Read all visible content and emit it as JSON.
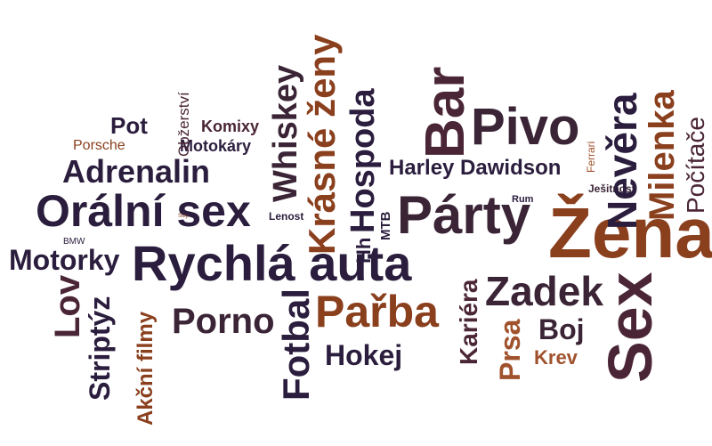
{
  "words": [
    {
      "id": "orální-sex",
      "text": "Orální sex",
      "color": "#2b1d3d"
    },
    {
      "id": "rychlá-auta",
      "text": "Rychlá auta",
      "color": "#2b1d3d"
    },
    {
      "id": "párty",
      "text": "Párty",
      "color": "#3a2436"
    },
    {
      "id": "žena",
      "text": "Žena",
      "color": "#8a3f1d"
    },
    {
      "id": "sex",
      "text": "Sex",
      "color": "#4a2535"
    },
    {
      "id": "pivo",
      "text": "Pivo",
      "color": "#3a2436"
    },
    {
      "id": "bar",
      "text": "Bar",
      "color": "#4a2535"
    },
    {
      "id": "parba",
      "text": "Pařba",
      "color": "#8a3f1d"
    },
    {
      "id": "zadek",
      "text": "Zadek",
      "color": "#3a2436"
    },
    {
      "id": "adrenalin",
      "text": "Adrenalin",
      "color": "#2b1d3d"
    },
    {
      "id": "motorky",
      "text": "Motorky",
      "color": "#2b1d3d"
    },
    {
      "id": "porno",
      "text": "Porno",
      "color": "#3a2436"
    },
    {
      "id": "fotbal",
      "text": "Fotbal",
      "color": "#2b1d3d"
    },
    {
      "id": "hokej",
      "text": "Hokej",
      "color": "#2b1d3d"
    },
    {
      "id": "hospoda",
      "text": "Hospoda",
      "color": "#2b1d3d"
    },
    {
      "id": "krasne-zeny",
      "text": "Krásné ženy",
      "color": "#8a3f1d"
    },
    {
      "id": "whiskey",
      "text": "Whiskey",
      "color": "#3a2436"
    },
    {
      "id": "nevera",
      "text": "Nevěra",
      "color": "#2b1d3d"
    },
    {
      "id": "milenka",
      "text": "Milenka",
      "color": "#8a3f1d"
    },
    {
      "id": "pocitace",
      "text": "Počítače",
      "color": "#4a2535"
    },
    {
      "id": "harley",
      "text": "Harley Dawidson",
      "color": "#2b1d3d"
    },
    {
      "id": "kariera",
      "text": "Kariéra",
      "color": "#4a2535"
    },
    {
      "id": "prsa",
      "text": "Prsa",
      "color": "#a0522d"
    },
    {
      "id": "boj",
      "text": "Boj",
      "color": "#3a2436"
    },
    {
      "id": "krev",
      "text": "Krev",
      "color": "#a0522d"
    },
    {
      "id": "lov",
      "text": "Lov",
      "color": "#4a2535"
    },
    {
      "id": "striptyz",
      "text": "Striptýz",
      "color": "#2b1d3d"
    },
    {
      "id": "akcni-filmy",
      "text": "Akční filmy",
      "color": "#8a3f1d"
    },
    {
      "id": "pot",
      "text": "Pot",
      "color": "#2b1d3d"
    },
    {
      "id": "komixy",
      "text": "Komixy",
      "color": "#4a2535"
    },
    {
      "id": "motokary",
      "text": "Motokáry",
      "color": "#2b1d3d"
    },
    {
      "id": "porsche",
      "text": "Porsche",
      "color": "#8a3f1d"
    },
    {
      "id": "obzerstvi",
      "text": "Obžerství",
      "color": "#4a2535"
    },
    {
      "id": "lenost",
      "text": "Lenost",
      "color": "#2b1d3d"
    },
    {
      "id": "mtb",
      "text": "MTB",
      "color": "#2b1d3d"
    },
    {
      "id": "hh",
      "text": "Hh",
      "color": "#2b1d3d"
    },
    {
      "id": "rum",
      "text": "Rum",
      "color": "#2b1d3d"
    },
    {
      "id": "jesitnost",
      "text": "Ješitnost",
      "color": "#3a2436"
    },
    {
      "id": "ferrari",
      "text": "Ferrari",
      "color": "#a0522d"
    },
    {
      "id": "bmw",
      "text": "BMW",
      "color": "#2b1d3d"
    },
    {
      "id": "slzy",
      "text": "Slzy",
      "color": "#8a3f1d"
    }
  ]
}
